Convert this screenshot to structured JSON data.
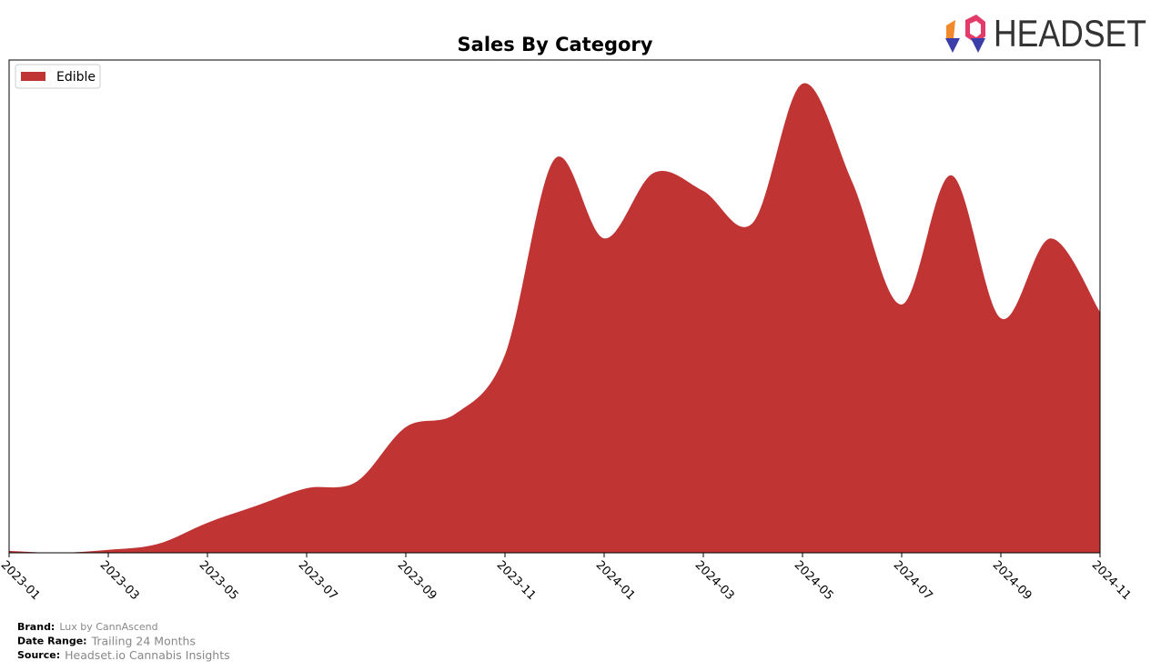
{
  "chart_data": {
    "type": "area",
    "title": "Sales By Category",
    "x": [
      "2023-01",
      null,
      "2023-03",
      null,
      "2023-05",
      null,
      "2023-07",
      null,
      "2023-09",
      null,
      "2023-11",
      null,
      "2024-01",
      null,
      "2024-03",
      null,
      "2024-05",
      null,
      "2024-07",
      null,
      "2024-09",
      null,
      "2024-11"
    ],
    "series": [
      {
        "name": "Edible",
        "color": "#c03434",
        "values": [
          0.4,
          0,
          0.6,
          1.8,
          6.1,
          9.6,
          13.1,
          14.4,
          25.5,
          28.2,
          40.2,
          79.9,
          63.8,
          77.1,
          73.4,
          67.0,
          95.2,
          75.3,
          50.4,
          76.6,
          47.6,
          63.8,
          48.9
        ]
      }
    ],
    "ylim": [
      0,
      100
    ],
    "legend": "upper-left"
  },
  "logo": "HEADSET",
  "footer": [
    {
      "label": "Brand:",
      "value": "Lux by CannAscend"
    },
    {
      "label": "Date Range:",
      "value": "Trailing 24 Months"
    },
    {
      "label": "Source:",
      "value": "Headset.io Cannabis Insights"
    }
  ]
}
